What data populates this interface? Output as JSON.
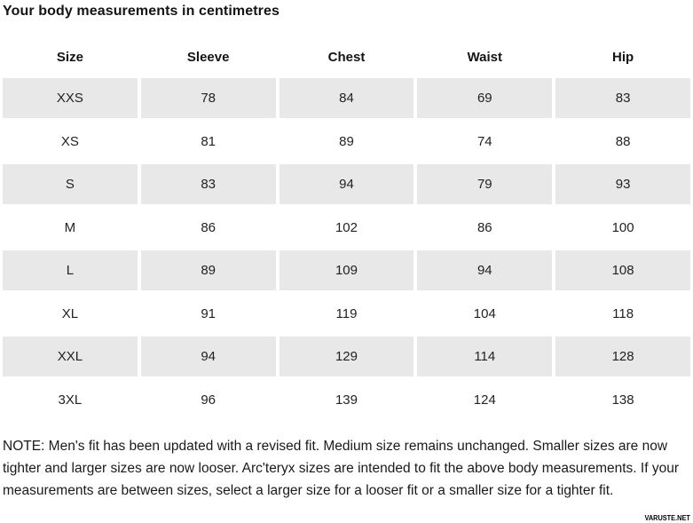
{
  "title": "Your body measurements in centimetres",
  "chart_data": {
    "type": "table",
    "title": "Your body measurements in centimetres",
    "columns": [
      "Size",
      "Sleeve",
      "Chest",
      "Waist",
      "Hip"
    ],
    "rows": [
      [
        "XXS",
        78,
        84,
        69,
        83
      ],
      [
        "XS",
        81,
        89,
        74,
        88
      ],
      [
        "S",
        83,
        94,
        79,
        93
      ],
      [
        "M",
        86,
        102,
        86,
        100
      ],
      [
        "L",
        89,
        109,
        94,
        108
      ],
      [
        "XL",
        91,
        119,
        104,
        118
      ],
      [
        "XXL",
        94,
        129,
        114,
        128
      ],
      [
        "3XL",
        96,
        139,
        124,
        138
      ]
    ],
    "striped_rows": [
      0,
      2,
      4,
      6
    ],
    "layout": "striped rows light gray, 4px white gutters between cells, values centered"
  },
  "note": "NOTE: Men's fit has been updated with a revised fit. Medium size remains unchanged. Smaller sizes are now tighter and larger sizes are now looser. Arc'teryx sizes are intended to fit the above body measurements. If your measurements are between sizes, select a larger size for a looser fit or a smaller size for a tighter fit.",
  "watermark": "VARUSTE.NET",
  "colors": {
    "row_stripe": "#e8e8e8",
    "text": "#1a1a1a",
    "background": "#ffffff"
  }
}
